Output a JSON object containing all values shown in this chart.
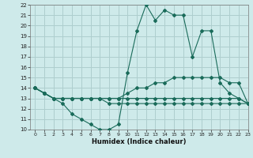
{
  "xlabel": "Humidex (Indice chaleur)",
  "bg_color": "#ceeaea",
  "grid_color": "#aecece",
  "line_color": "#1a6b5a",
  "x_values": [
    0,
    1,
    2,
    3,
    4,
    5,
    6,
    7,
    8,
    9,
    10,
    11,
    12,
    13,
    14,
    15,
    16,
    17,
    18,
    19,
    20,
    21,
    22,
    23
  ],
  "line1_y": [
    14.0,
    13.5,
    13.0,
    12.5,
    11.5,
    11.0,
    10.5,
    10.0,
    10.0,
    10.5,
    15.5,
    19.5,
    22.0,
    20.5,
    21.5,
    21.0,
    21.0,
    17.0,
    19.5,
    19.5,
    14.5,
    13.5,
    13.0,
    12.5
  ],
  "line2_y": [
    14.0,
    13.5,
    13.0,
    13.0,
    13.0,
    13.0,
    13.0,
    13.0,
    13.0,
    13.0,
    13.0,
    13.0,
    13.0,
    13.0,
    13.0,
    13.0,
    13.0,
    13.0,
    13.0,
    13.0,
    13.0,
    13.0,
    13.0,
    12.5
  ],
  "line3_y": [
    14.0,
    13.5,
    13.0,
    13.0,
    13.0,
    13.0,
    13.0,
    13.0,
    13.0,
    13.0,
    13.5,
    14.0,
    14.0,
    14.5,
    14.5,
    15.0,
    15.0,
    15.0,
    15.0,
    15.0,
    15.0,
    14.5,
    14.5,
    12.5
  ],
  "line4_y": [
    14.0,
    13.5,
    13.0,
    13.0,
    13.0,
    13.0,
    13.0,
    13.0,
    12.5,
    12.5,
    12.5,
    12.5,
    12.5,
    12.5,
    12.5,
    12.5,
    12.5,
    12.5,
    12.5,
    12.5,
    12.5,
    12.5,
    12.5,
    12.5
  ],
  "ylim": [
    10,
    22
  ],
  "xlim": [
    -0.5,
    23
  ],
  "yticks": [
    10,
    11,
    12,
    13,
    14,
    15,
    16,
    17,
    18,
    19,
    20,
    21,
    22
  ],
  "xticks": [
    0,
    1,
    2,
    3,
    4,
    5,
    6,
    7,
    8,
    9,
    10,
    11,
    12,
    13,
    14,
    15,
    16,
    17,
    18,
    19,
    20,
    21,
    22,
    23
  ]
}
